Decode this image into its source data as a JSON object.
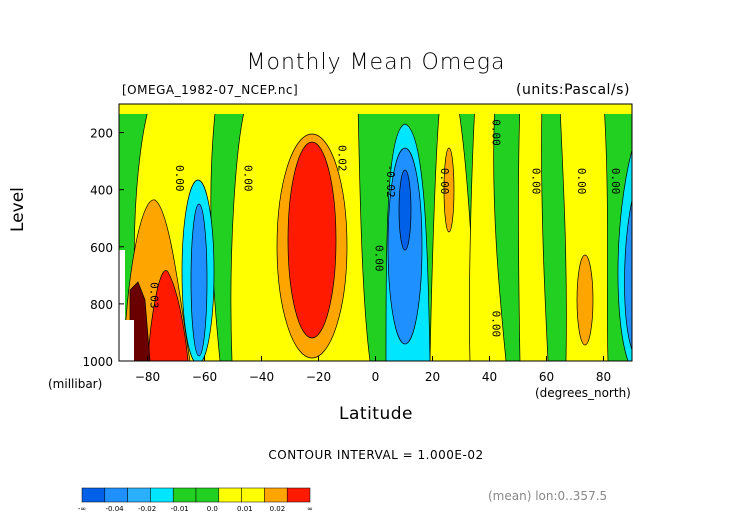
{
  "title": "Monthly Mean Omega",
  "file_label": "[OMEGA_1982-07_NCEP.nc]",
  "units_label": "(units:Pascal/s)",
  "contour_interval": "CONTOUR INTERVAL = 1.000E-02",
  "mean_note": "(mean) lon:0..357.5",
  "colors": {
    "lt_neg3": "#0060e8",
    "neg3": "#1e90ff",
    "neg2": "#2bb0ff",
    "neg1": "#00e6ff",
    "zero": "#22d022",
    "pos1": "#ffff00",
    "pos2": "#ffa500",
    "pos3": "#ff1a00"
  },
  "chart_data": {
    "type": "contour",
    "title": "Monthly Mean Omega",
    "xlabel": "Latitude",
    "ylabel": "Level",
    "x_unit": "(degrees_north)",
    "y_unit": "(millibar)",
    "xlim": [
      -90,
      90
    ],
    "ylim": [
      1000,
      100
    ],
    "x_ticks": [
      -80,
      -60,
      -40,
      -20,
      0,
      20,
      40,
      60,
      80
    ],
    "y_ticks": [
      1000,
      800,
      600,
      400,
      200
    ],
    "contour_interval": 0.01,
    "contour_labels": [
      {
        "text": "0.00",
        "lat": -70,
        "p": 360
      },
      {
        "text": "0.00",
        "lat": -46,
        "p": 360
      },
      {
        "text": "0.02",
        "lat": -13,
        "p": 290
      },
      {
        "text": "-0.02",
        "lat": 4,
        "p": 370
      },
      {
        "text": "0.00",
        "lat": 0,
        "p": 640
      },
      {
        "text": "0.00",
        "lat": 23,
        "p": 370
      },
      {
        "text": "0.00",
        "lat": 41,
        "p": 200
      },
      {
        "text": "0.00",
        "lat": 55,
        "p": 370
      },
      {
        "text": "0.00",
        "lat": 71,
        "p": 370
      },
      {
        "text": "0.00",
        "lat": 83,
        "p": 370
      },
      {
        "text": "0.00",
        "lat": 41,
        "p": 870
      },
      {
        "text": "0.03",
        "lat": -79,
        "p": 770
      }
    ],
    "colorbar": {
      "labels": [
        "-∞",
        "-0.04",
        "-0.02",
        "-0.01",
        "0.0",
        "0.01",
        "0.02",
        "∞"
      ],
      "bins": [
        "<-0.04",
        "-0.04..-0.03",
        "-0.03..-0.02",
        "-0.02..-0.01",
        "-0.01..0.0",
        "0.0..0.005",
        "0.005..0.01",
        "0.01..0.015",
        "0.015..0.02",
        ">0.02"
      ]
    }
  }
}
